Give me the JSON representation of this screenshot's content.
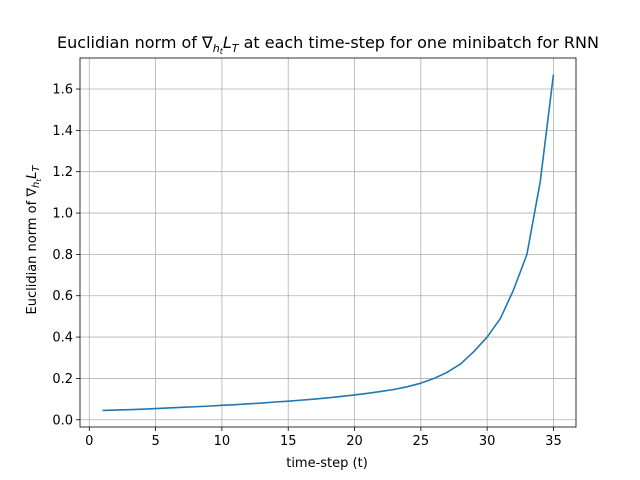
{
  "chart_data": {
    "type": "line",
    "title": "Euclidian norm of ∇_{h_t} L_T at each time-step for one minibatch for RNN",
    "title_parts": {
      "prefix": "Euclidian norm of ∇",
      "sub1": "h",
      "sub2": "t",
      "mid": "L",
      "sub3": "T",
      "suffix": " at each time-step for one minibatch for RNN"
    },
    "xlabel": "time-step (t)",
    "ylabel_parts": {
      "prefix": "Euclidian norm of ∇",
      "sub1": "h",
      "sub2": "t",
      "mid": "L",
      "sub3": "T"
    },
    "xlim": [
      -0.7,
      36.7
    ],
    "ylim": [
      -0.035,
      1.75
    ],
    "xticks": [
      0,
      5,
      10,
      15,
      20,
      25,
      30,
      35
    ],
    "xtick_labels": [
      "0",
      "5",
      "10",
      "15",
      "20",
      "25",
      "30",
      "35"
    ],
    "yticks": [
      0.0,
      0.2,
      0.4,
      0.6,
      0.8,
      1.0,
      1.2,
      1.4,
      1.6
    ],
    "ytick_labels": [
      "0.0",
      "0.2",
      "0.4",
      "0.6",
      "0.8",
      "1.0",
      "1.2",
      "1.4",
      "1.6"
    ],
    "grid": true,
    "line_color": "#1f77b4",
    "series": [
      {
        "x": [
          1,
          2,
          3,
          4,
          5,
          6,
          7,
          8,
          9,
          10,
          11,
          12,
          13,
          14,
          15,
          16,
          17,
          18,
          19,
          20,
          21,
          22,
          23,
          24,
          25,
          26,
          27,
          28,
          29,
          30,
          31,
          32,
          33,
          34,
          35
        ],
        "y": [
          0.045,
          0.047,
          0.049,
          0.051,
          0.054,
          0.057,
          0.06,
          0.063,
          0.066,
          0.07,
          0.073,
          0.077,
          0.081,
          0.086,
          0.09,
          0.095,
          0.1,
          0.106,
          0.113,
          0.12,
          0.128,
          0.137,
          0.147,
          0.16,
          0.177,
          0.2,
          0.23,
          0.27,
          0.33,
          0.4,
          0.49,
          0.63,
          0.8,
          1.15,
          1.67
        ]
      }
    ]
  }
}
